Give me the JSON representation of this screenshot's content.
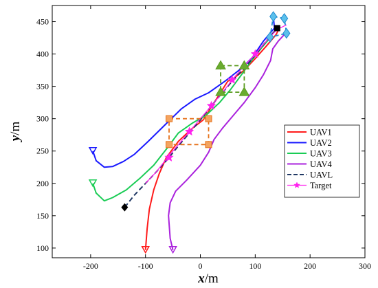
{
  "chart_data": {
    "type": "line",
    "xlabel": {
      "var": "x",
      "unit": "/m"
    },
    "ylabel": {
      "var": "y",
      "unit": "/m"
    },
    "xlim": [
      -270,
      300
    ],
    "ylim": [
      85,
      475
    ],
    "xticks": [
      -200,
      -100,
      0,
      100,
      200,
      300
    ],
    "yticks": [
      100,
      150,
      200,
      250,
      300,
      350,
      400,
      450
    ],
    "grid": false,
    "legend_position": "lower-right",
    "series": [
      {
        "name": "UAV1",
        "color": "#ff1a1a",
        "dash": "solid",
        "points": [
          [
            -100,
            97
          ],
          [
            -97,
            130
          ],
          [
            -93,
            160
          ],
          [
            -85,
            190
          ],
          [
            -75,
            215
          ],
          [
            -62,
            240
          ],
          [
            -40,
            265
          ],
          [
            -15,
            285
          ],
          [
            5,
            298
          ],
          [
            20,
            318
          ],
          [
            35,
            338
          ],
          [
            50,
            358
          ],
          [
            60,
            362
          ],
          [
            80,
            375
          ],
          [
            100,
            393
          ],
          [
            120,
            412
          ],
          [
            138,
            430
          ],
          [
            144,
            440
          ]
        ]
      },
      {
        "name": "UAV2",
        "color": "#1a1aff",
        "dash": "solid",
        "points": [
          [
            -196,
            250
          ],
          [
            -190,
            235
          ],
          [
            -175,
            225
          ],
          [
            -160,
            226
          ],
          [
            -140,
            234
          ],
          [
            -120,
            245
          ],
          [
            -95,
            265
          ],
          [
            -65,
            290
          ],
          [
            -35,
            315
          ],
          [
            -10,
            330
          ],
          [
            15,
            340
          ],
          [
            45,
            358
          ],
          [
            75,
            378
          ],
          [
            95,
            395
          ],
          [
            115,
            420
          ],
          [
            135,
            440
          ],
          [
            133,
            458
          ]
        ]
      },
      {
        "name": "UAV3",
        "color": "#1acc55",
        "dash": "solid",
        "points": [
          [
            -196,
            200
          ],
          [
            -190,
            185
          ],
          [
            -175,
            173
          ],
          [
            -160,
            178
          ],
          [
            -135,
            190
          ],
          [
            -110,
            208
          ],
          [
            -85,
            228
          ],
          [
            -60,
            255
          ],
          [
            -40,
            278
          ],
          [
            -15,
            293
          ],
          [
            10,
            305
          ],
          [
            35,
            325
          ],
          [
            55,
            345
          ],
          [
            75,
            368
          ],
          [
            95,
            392
          ],
          [
            112,
            410
          ],
          [
            127,
            425
          ]
        ]
      },
      {
        "name": "UAV4",
        "color": "#aa22dd",
        "dash": "solid",
        "points": [
          [
            -50,
            97
          ],
          [
            -55,
            115
          ],
          [
            -58,
            150
          ],
          [
            -55,
            170
          ],
          [
            -45,
            188
          ],
          [
            -25,
            205
          ],
          [
            0,
            228
          ],
          [
            15,
            248
          ],
          [
            25,
            268
          ],
          [
            40,
            285
          ],
          [
            60,
            305
          ],
          [
            80,
            325
          ],
          [
            100,
            348
          ],
          [
            115,
            368
          ],
          [
            128,
            390
          ],
          [
            132,
            408
          ],
          [
            142,
            420
          ],
          [
            155,
            432
          ]
        ]
      },
      {
        "name": "UAVL",
        "color": "#203864",
        "dash": "dashed",
        "points": [
          [
            -138,
            163
          ],
          [
            -120,
            182
          ],
          [
            -100,
            200
          ],
          [
            -80,
            218
          ],
          [
            -60,
            237
          ],
          [
            -40,
            258
          ],
          [
            -20,
            278
          ],
          [
            0,
            298
          ],
          [
            20,
            320
          ],
          [
            40,
            340
          ],
          [
            60,
            360
          ],
          [
            80,
            378
          ],
          [
            100,
            398
          ],
          [
            118,
            418
          ],
          [
            138,
            438
          ]
        ]
      },
      {
        "name": "Target",
        "color": "#ff22ee",
        "dash": "solid",
        "points": [
          [
            -100,
            200
          ],
          [
            -80,
            218
          ],
          [
            -60,
            240
          ],
          [
            -40,
            260
          ],
          [
            -20,
            280
          ],
          [
            0,
            300
          ],
          [
            20,
            320
          ],
          [
            40,
            340
          ],
          [
            58,
            360
          ],
          [
            78,
            380
          ],
          [
            100,
            400
          ],
          [
            120,
            420
          ],
          [
            140,
            438
          ],
          [
            157,
            445
          ]
        ]
      }
    ],
    "star_markers": [
      [
        -57,
        240
      ],
      [
        -20,
        280
      ],
      [
        20,
        320
      ],
      [
        58,
        360
      ],
      [
        100,
        400
      ]
    ],
    "formations": [
      {
        "kind": "square",
        "color": "#e6711a",
        "fill": "#f4a460",
        "points": [
          [
            -57,
            300
          ],
          [
            15,
            300
          ],
          [
            15,
            260
          ],
          [
            -57,
            260
          ]
        ]
      },
      {
        "kind": "triangle",
        "color": "#5a9a1e",
        "fill": "#6aab2f",
        "points": [
          [
            37,
            382
          ],
          [
            80,
            382
          ],
          [
            80,
            341
          ],
          [
            37,
            341
          ]
        ]
      },
      {
        "kind": "diamond",
        "color": "#1f8ad0",
        "fill": "#5bc0eb",
        "points": [
          [
            133,
            458
          ],
          [
            153,
            455
          ],
          [
            157,
            432
          ],
          [
            127,
            426
          ]
        ]
      }
    ],
    "start_markers": [
      {
        "shape": "triangle-down",
        "color": "#ff1a1a",
        "at": [
          -100,
          97
        ]
      },
      {
        "shape": "triangle-down",
        "color": "#1a1aff",
        "at": [
          -196,
          250
        ]
      },
      {
        "shape": "triangle-down",
        "color": "#1acc55",
        "at": [
          -196,
          200
        ]
      },
      {
        "shape": "triangle-down",
        "color": "#aa22dd",
        "at": [
          -50,
          97
        ]
      }
    ],
    "leader_markers": [
      {
        "shape": "diamond",
        "color": "#000000",
        "at": [
          -138,
          163
        ]
      },
      {
        "shape": "square",
        "color": "#000000",
        "at": [
          140,
          440
        ]
      }
    ]
  }
}
